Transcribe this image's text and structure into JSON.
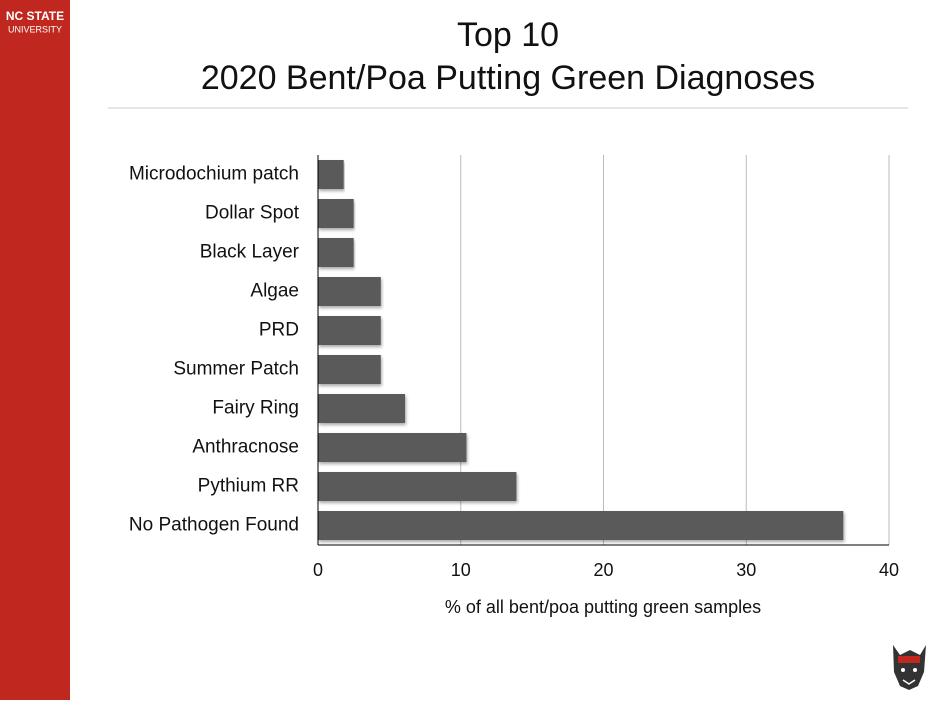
{
  "branding": {
    "line1": "NC STATE",
    "line2": "UNIVERSITY"
  },
  "chart_data": {
    "type": "barh",
    "title": "Top 10",
    "subtitle": "2020 Bent/Poa Putting Green Diagnoses",
    "x_label": "% of all bent/poa putting green samples",
    "categories": [
      "Microdochium patch",
      "Dollar Spot",
      "Black Layer",
      "Algae",
      "PRD",
      "Summer Patch",
      "Fairy Ring",
      "Anthracnose",
      "Pythium RR",
      "No Pathogen Found"
    ],
    "values": [
      1.8,
      2.5,
      2.5,
      4.4,
      4.4,
      4.4,
      6.1,
      10.4,
      13.9,
      36.8
    ],
    "color": "#5a5a5a",
    "xlim": [
      0,
      40
    ],
    "xticks": [
      0,
      10,
      20,
      30,
      40
    ],
    "grid": true
  }
}
